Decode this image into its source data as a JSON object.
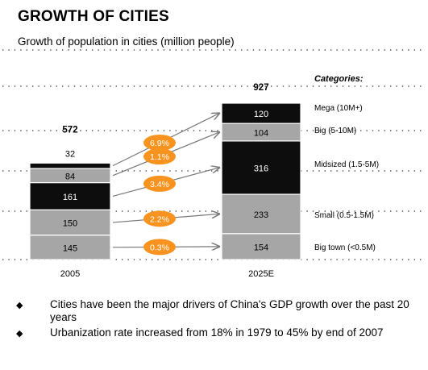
{
  "header": {
    "title": "GROWTH OF CITIES",
    "subtitle": "Growth of population in cities (million people)"
  },
  "chart_data": {
    "type": "bar",
    "stacked": true,
    "title": "GROWTH OF CITIES",
    "subtitle": "Growth of population in cities (million people)",
    "categories": [
      "2005",
      "2025E"
    ],
    "totals": [
      572,
      927
    ],
    "legend_title": "Categories:",
    "series": [
      {
        "name": "Big town (<0.5M)",
        "values": [
          145,
          154
        ],
        "color": "#a6a6a6",
        "cagr": "0.3%"
      },
      {
        "name": "Small (0.5-1.5M)",
        "values": [
          150,
          233
        ],
        "color": "#a6a6a6",
        "cagr": "2.2%"
      },
      {
        "name": "Midsized (1.5-5M)",
        "values": [
          161,
          316
        ],
        "color": "#0d0d0d",
        "cagr": "3.4%"
      },
      {
        "name": "Big (5-10M)",
        "values": [
          84,
          104
        ],
        "color": "#a6a6a6",
        "cagr": "1.1%"
      },
      {
        "name": "Mega (10M+)",
        "values": [
          32,
          120
        ],
        "color": "#0d0d0d",
        "cagr": "6.9%"
      }
    ],
    "cagr_color": "#f7931e",
    "grid": true
  },
  "bullets": [
    "Cities have been the major drivers of China's GDP growth over the past 20 years",
    "Urbanization rate increased from 18% in 1979 to 45% by end of 2007"
  ],
  "bullet_mark": "◆"
}
